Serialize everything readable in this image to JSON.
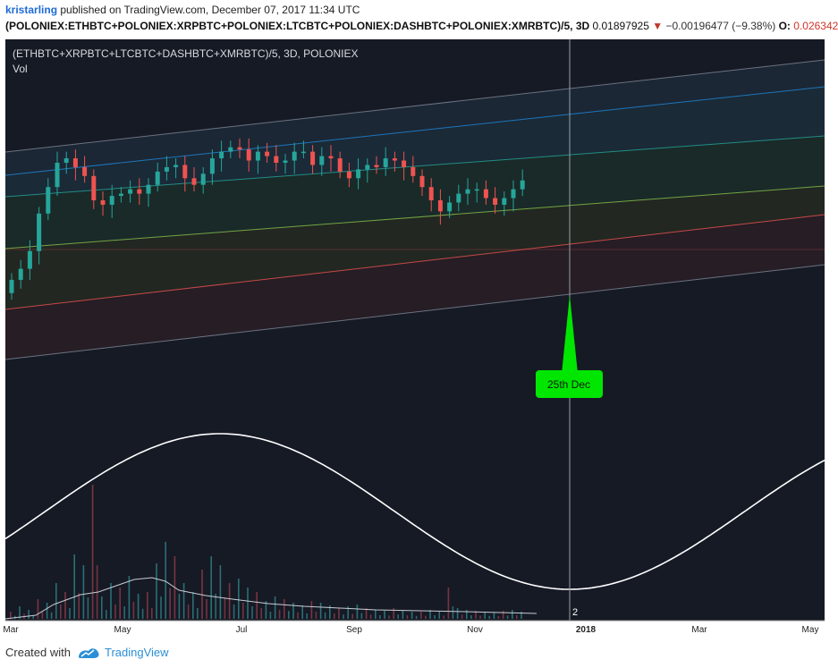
{
  "header": {
    "user": "kristarling",
    "published_text": "published on TradingView.com, December 07, 2017 11:34 UTC",
    "symbol": "(POLONIEX:ETHBTC+POLONIEX:XRPBTC+POLONIEX:LTCBTC+POLONIEX:DASHBTC+POLONIEX:XMRBTC)/5, 3D",
    "last": "0.01897925",
    "change_arrow": "▼",
    "change": "−0.00196477 (−9.38%)",
    "open_label": "O:",
    "open_value": "0.026342"
  },
  "legend": {
    "series": "(ETHBTC+XRPBTC+LTCBTC+DASHBTC+XMRBTC)/5, 3D, POLONIEX",
    "volume": "Vol"
  },
  "annotation": {
    "text": "25th Dec",
    "color": "#00e600"
  },
  "cycle_label": "2",
  "chart_data": {
    "type": "candlestick",
    "x_ticks": [
      "Mar",
      "May",
      "Jul",
      "Sep",
      "Nov",
      "2018",
      "Mar",
      "May"
    ],
    "bullish_color": "#26a69a",
    "bearish_color": "#ef5350",
    "close_series": [
      0.0145,
      0.015,
      0.0158,
      0.0175,
      0.0187,
      0.0198,
      0.02,
      0.0196,
      0.0192,
      0.0181,
      0.0179,
      0.0183,
      0.0184,
      0.0186,
      0.0184,
      0.0188,
      0.0194,
      0.0196,
      0.0197,
      0.0191,
      0.0188,
      0.0193,
      0.02,
      0.0203,
      0.0205,
      0.0204,
      0.0199,
      0.0203,
      0.0201,
      0.0198,
      0.0199,
      0.0203,
      0.0203,
      0.0197,
      0.0201,
      0.02,
      0.0194,
      0.0191,
      0.0195,
      0.0197,
      0.0196,
      0.02,
      0.0199,
      0.0196,
      0.0192,
      0.0187,
      0.0181,
      0.0176,
      0.018,
      0.0184,
      0.0186,
      0.0186,
      0.0182,
      0.0179,
      0.0182,
      0.0186,
      0.019
    ],
    "volume_label_present": true
  },
  "colors": {
    "background": "#161a25",
    "channel_upper": "#2196f3",
    "channel_mid": "#4caf50",
    "channel_lower": "#ef5350",
    "channel_yellow": "#c6c13a"
  }
}
